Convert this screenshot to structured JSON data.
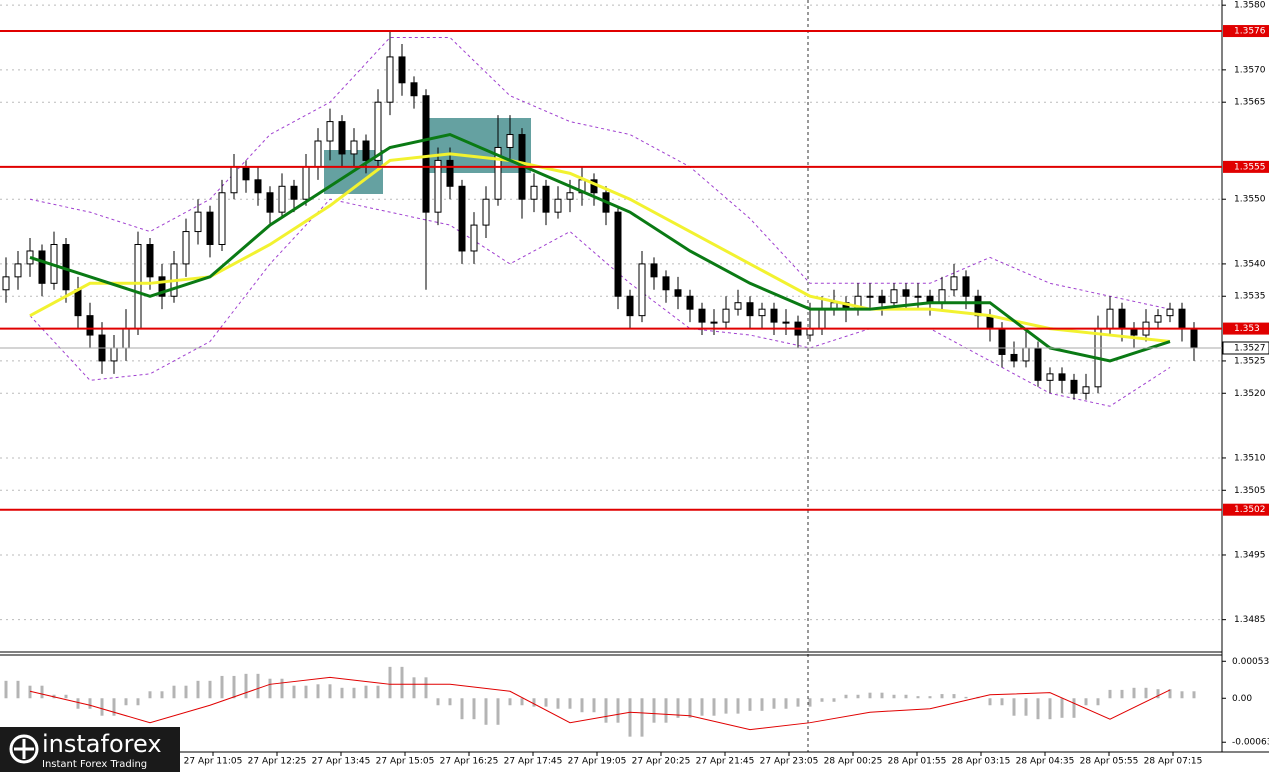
{
  "chart_data": {
    "type": "candlestick",
    "candles": [
      [
        1.3536,
        1.3541,
        1.3534,
        1.3538
      ],
      [
        1.3538,
        1.3542,
        1.3536,
        1.354
      ],
      [
        1.354,
        1.3544,
        1.3538,
        1.3542
      ],
      [
        1.3542,
        1.3543,
        1.3535,
        1.3537
      ],
      [
        1.3537,
        1.3545,
        1.3536,
        1.3543
      ],
      [
        1.3543,
        1.3544,
        1.3534,
        1.3536
      ],
      [
        1.3536,
        1.3538,
        1.353,
        1.3532
      ],
      [
        1.3532,
        1.3534,
        1.3527,
        1.3529
      ],
      [
        1.3529,
        1.3531,
        1.3523,
        1.3525
      ],
      [
        1.3525,
        1.3529,
        1.3523,
        1.3527
      ],
      [
        1.3527,
        1.3533,
        1.3525,
        1.353
      ],
      [
        1.353,
        1.3545,
        1.3529,
        1.3543
      ],
      [
        1.3543,
        1.3544,
        1.3536,
        1.3538
      ],
      [
        1.3538,
        1.354,
        1.3533,
        1.3535
      ],
      [
        1.3535,
        1.3542,
        1.3534,
        1.354
      ],
      [
        1.354,
        1.3547,
        1.3538,
        1.3545
      ],
      [
        1.3545,
        1.355,
        1.3543,
        1.3548
      ],
      [
        1.3548,
        1.3549,
        1.3541,
        1.3543
      ],
      [
        1.3543,
        1.3553,
        1.3542,
        1.3551
      ],
      [
        1.3551,
        1.3557,
        1.355,
        1.3555
      ],
      [
        1.3555,
        1.3556,
        1.3551,
        1.3553
      ],
      [
        1.3553,
        1.3555,
        1.3549,
        1.3551
      ],
      [
        1.3551,
        1.3552,
        1.3546,
        1.3548
      ],
      [
        1.3548,
        1.3554,
        1.3547,
        1.3552
      ],
      [
        1.3552,
        1.3553,
        1.3548,
        1.355
      ],
      [
        1.355,
        1.3557,
        1.3549,
        1.3555
      ],
      [
        1.3555,
        1.3561,
        1.3553,
        1.3559
      ],
      [
        1.3559,
        1.3564,
        1.3556,
        1.3562
      ],
      [
        1.3562,
        1.3563,
        1.3555,
        1.3557
      ],
      [
        1.3557,
        1.3561,
        1.3555,
        1.3559
      ],
      [
        1.3559,
        1.356,
        1.3554,
        1.3556
      ],
      [
        1.3556,
        1.3567,
        1.3555,
        1.3565
      ],
      [
        1.3565,
        1.3576,
        1.3563,
        1.3572
      ],
      [
        1.3572,
        1.3574,
        1.3566,
        1.3568
      ],
      [
        1.3568,
        1.3569,
        1.3564,
        1.3566
      ],
      [
        1.3566,
        1.3567,
        1.3536,
        1.3548
      ],
      [
        1.3548,
        1.3558,
        1.3546,
        1.3556
      ],
      [
        1.3556,
        1.3558,
        1.355,
        1.3552
      ],
      [
        1.3552,
        1.3553,
        1.354,
        1.3542
      ],
      [
        1.3542,
        1.3548,
        1.354,
        1.3546
      ],
      [
        1.3546,
        1.3552,
        1.3544,
        1.355
      ],
      [
        1.355,
        1.3563,
        1.3549,
        1.3558
      ],
      [
        1.3558,
        1.3563,
        1.3556,
        1.356
      ],
      [
        1.356,
        1.3561,
        1.3547,
        1.355
      ],
      [
        1.355,
        1.3554,
        1.3548,
        1.3552
      ],
      [
        1.3552,
        1.3553,
        1.3546,
        1.3548
      ],
      [
        1.3548,
        1.3552,
        1.3547,
        1.355
      ],
      [
        1.355,
        1.3553,
        1.3548,
        1.3551
      ],
      [
        1.3551,
        1.3555,
        1.3549,
        1.3553
      ],
      [
        1.3553,
        1.3554,
        1.3549,
        1.3551
      ],
      [
        1.3551,
        1.3552,
        1.3546,
        1.3548
      ],
      [
        1.3548,
        1.3549,
        1.3533,
        1.3535
      ],
      [
        1.3535,
        1.3536,
        1.353,
        1.3532
      ],
      [
        1.3532,
        1.3542,
        1.3531,
        1.354
      ],
      [
        1.354,
        1.3541,
        1.3536,
        1.3538
      ],
      [
        1.3538,
        1.3539,
        1.3534,
        1.3536
      ],
      [
        1.3536,
        1.3538,
        1.3533,
        1.3535
      ],
      [
        1.3535,
        1.3536,
        1.3531,
        1.3533
      ],
      [
        1.3533,
        1.3534,
        1.3529,
        1.3531
      ],
      [
        1.3531,
        1.3533,
        1.3529,
        1.3531
      ],
      [
        1.3531,
        1.3535,
        1.353,
        1.3533
      ],
      [
        1.3533,
        1.3536,
        1.3532,
        1.3534
      ],
      [
        1.3534,
        1.3535,
        1.353,
        1.3532
      ],
      [
        1.3532,
        1.3534,
        1.353,
        1.3533
      ],
      [
        1.3533,
        1.3534,
        1.3529,
        1.3531
      ],
      [
        1.3531,
        1.3533,
        1.3529,
        1.3531
      ],
      [
        1.3531,
        1.3532,
        1.3527,
        1.3529
      ],
      [
        1.3529,
        1.3534,
        1.3528,
        1.353
      ],
      [
        1.353,
        1.3535,
        1.3529,
        1.3533
      ],
      [
        1.3533,
        1.3536,
        1.3532,
        1.3534
      ],
      [
        1.3534,
        1.3535,
        1.3531,
        1.3533
      ],
      [
        1.3533,
        1.3537,
        1.3532,
        1.3535
      ],
      [
        1.3535,
        1.3537,
        1.3533,
        1.3535
      ],
      [
        1.3535,
        1.3536,
        1.3532,
        1.3534
      ],
      [
        1.3534,
        1.3537,
        1.3533,
        1.3536
      ],
      [
        1.3536,
        1.3537,
        1.3533,
        1.3535
      ],
      [
        1.3535,
        1.3537,
        1.3533,
        1.3535
      ],
      [
        1.3535,
        1.3536,
        1.3532,
        1.3534
      ],
      [
        1.3534,
        1.3538,
        1.3533,
        1.3536
      ],
      [
        1.3536,
        1.354,
        1.3535,
        1.3538
      ],
      [
        1.3538,
        1.3539,
        1.3533,
        1.3535
      ],
      [
        1.3535,
        1.3536,
        1.353,
        1.3532
      ],
      [
        1.3532,
        1.3533,
        1.3528,
        1.353
      ],
      [
        1.353,
        1.3531,
        1.3524,
        1.3526
      ],
      [
        1.3526,
        1.3528,
        1.3524,
        1.3525
      ],
      [
        1.3525,
        1.353,
        1.3524,
        1.3527
      ],
      [
        1.3527,
        1.3528,
        1.3521,
        1.3522
      ],
      [
        1.3522,
        1.3524,
        1.352,
        1.3523
      ],
      [
        1.3523,
        1.3524,
        1.352,
        1.3522
      ],
      [
        1.3522,
        1.3523,
        1.3519,
        1.352
      ],
      [
        1.352,
        1.3523,
        1.3519,
        1.3521
      ],
      [
        1.3521,
        1.3532,
        1.352,
        1.353
      ],
      [
        1.353,
        1.3535,
        1.3529,
        1.3533
      ],
      [
        1.3533,
        1.3534,
        1.3528,
        1.353
      ],
      [
        1.353,
        1.3531,
        1.3527,
        1.3529
      ],
      [
        1.3529,
        1.3533,
        1.3528,
        1.3531
      ],
      [
        1.3531,
        1.3533,
        1.353,
        1.3532
      ],
      [
        1.3532,
        1.3534,
        1.3531,
        1.3533
      ],
      [
        1.3533,
        1.3534,
        1.3528,
        1.353
      ],
      [
        1.353,
        1.3531,
        1.3525,
        1.3527
      ]
    ],
    "ylim": [
      1.348,
      1.35808
    ],
    "yticks": [
      {
        "value": 1.358,
        "label": "1.3580"
      },
      {
        "value": 1.357,
        "label": "1.3570"
      },
      1.3565,
      {
        "value": 1.355,
        "label": "1.3550"
      },
      {
        "value": 1.354,
        "label": "1.3540"
      },
      1.3535,
      1.3525,
      {
        "value": 1.352,
        "label": "1.3520"
      },
      {
        "value": 1.351,
        "label": "1.3510"
      },
      1.3505,
      1.3495,
      1.3485
    ],
    "grid": true,
    "levels": {
      "color": "#e00000",
      "values": [
        1.3576,
        1.3555,
        1.353,
        1.3502
      ]
    },
    "current_price": 1.3527,
    "ma_fast": {
      "color": "#0a7a14",
      "values": [
        1.3541,
        1.3538,
        1.3535,
        1.3538,
        1.3546,
        1.3552,
        1.3558,
        1.356,
        1.3556,
        1.3552,
        1.3548,
        1.3542,
        1.3537,
        1.3533,
        1.3533,
        1.3534,
        1.3534,
        1.3527,
        1.3525,
        1.3528
      ]
    },
    "ma_slow": {
      "color": "#f2f230",
      "values": [
        1.3532,
        1.3537,
        1.3537,
        1.3538,
        1.3543,
        1.3549,
        1.3556,
        1.3557,
        1.3556,
        1.3554,
        1.355,
        1.3545,
        1.354,
        1.3535,
        1.3533,
        1.3533,
        1.3532,
        1.353,
        1.3529,
        1.3528
      ]
    },
    "bands": {
      "color": "#a040d0",
      "upper": [
        1.355,
        1.3548,
        1.3545,
        1.355,
        1.356,
        1.3565,
        1.3575,
        1.3575,
        1.3566,
        1.3562,
        1.356,
        1.3555,
        1.3547,
        1.3537,
        1.3537,
        1.3537,
        1.3541,
        1.3537,
        1.3535,
        1.3533
      ],
      "lower": [
        1.3532,
        1.3522,
        1.3523,
        1.3528,
        1.354,
        1.355,
        1.3548,
        1.3546,
        1.354,
        1.3545,
        1.3537,
        1.353,
        1.3529,
        1.3527,
        1.353,
        1.353,
        1.3525,
        1.352,
        1.3518,
        1.3524
      ]
    },
    "time_labels": [
      "27 Apr 11:05",
      "27 Apr 12:25",
      "27 Apr 13:45",
      "27 Apr 15:05",
      "27 Apr 16:25",
      "27 Apr 17:45",
      "27 Apr 19:05",
      "27 Apr 20:25",
      "27 Apr 21:45",
      "27 Apr 23:05",
      "28 Apr 00:25",
      "28 Apr 01:55",
      "28 Apr 03:15",
      "28 Apr 04:35",
      "28 Apr 05:55",
      "28 Apr 07:15"
    ],
    "macd": {
      "color": "#b4b4b4",
      "signal_color": "#e00000",
      "ylim": [
        -0.00077,
        0.00062
      ],
      "yticks": [
        0.00053,
        {
          "value": 0,
          "label": "0.00"
        },
        -0.00063
      ],
      "histogram": [
        0.00025,
        0.00018,
        5e-05,
        -0.00015,
        -0.00025,
        -0.0001,
        0.0001,
        0.00018,
        0.00025,
        0.00032,
        0.00035,
        0.00028,
        0.00018,
        0.0002,
        0.00015,
        0.00018,
        0.00045,
        0.0003,
        -0.0001,
        -0.0003,
        -0.00038,
        -0.0001,
        -0.00012,
        -0.00015,
        -0.0002,
        -0.00035,
        -0.00055,
        -0.00035,
        -0.00028,
        -0.00025,
        -0.00022,
        -0.00018,
        -0.00015,
        -0.00012,
        -5e-05,
        5e-05,
        8e-05,
        5e-05,
        3e-05,
        6e-05,
        2e-05,
        -0.0001,
        -0.00025,
        -0.0003,
        -0.00028,
        -0.0001,
        0.00012,
        0.00015,
        0.00013,
        0.0001
      ],
      "signal": [
        0.0001,
        -0.0001,
        -0.00035,
        -0.0001,
        0.0002,
        0.0003,
        0.0002,
        0.0002,
        0.0001,
        -0.00035,
        -0.0002,
        -0.00025,
        -0.00045,
        -0.00035,
        -0.0002,
        -0.00015,
        5e-05,
        8e-05,
        -0.0003,
        0.00012
      ]
    }
  },
  "branding": {
    "name": "instaforex",
    "tagline": "Instant Forex Trading"
  }
}
